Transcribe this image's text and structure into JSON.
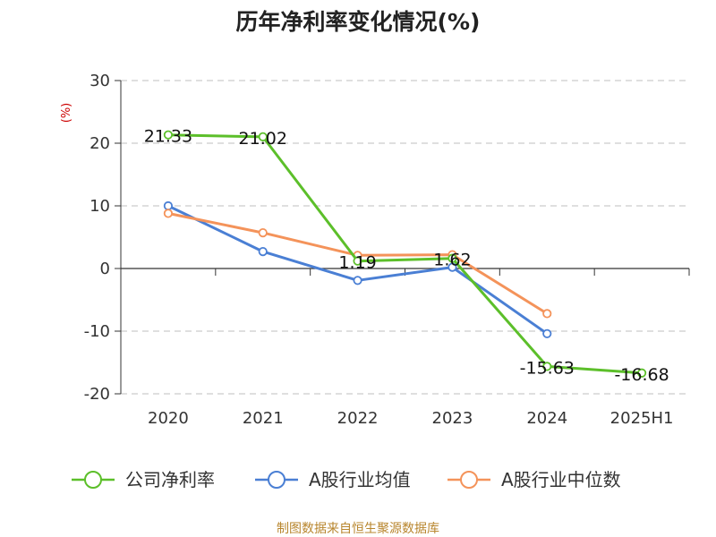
{
  "title": "历年净利率变化情况(%)",
  "source": "制图数据来自恒生聚源数据库",
  "chart_data": {
    "type": "line",
    "title": "历年净利率变化情况(%)",
    "ylabel": "(%)",
    "xlabel": "",
    "categories": [
      "2020",
      "2021",
      "2022",
      "2023",
      "2024",
      "2025H1"
    ],
    "ylim": [
      -20,
      30
    ],
    "yticks": [
      30,
      20,
      10,
      0,
      -10,
      -20
    ],
    "ytick_labels": [
      "30",
      "20",
      "10",
      "0",
      "-10",
      "-20"
    ],
    "grid": true,
    "legend_position": "bottom",
    "series": [
      {
        "name": "公司净利率",
        "color": "#5cbf2a",
        "values": [
          21.33,
          21.02,
          1.19,
          1.62,
          -15.63,
          -16.68
        ],
        "labels": [
          "21.33",
          "21.02",
          "1.19",
          "1.62",
          "-15.63",
          "-16.68"
        ]
      },
      {
        "name": "A股行业均值",
        "color": "#4a7fd4",
        "values": [
          10.0,
          2.7,
          -1.9,
          0.2,
          -10.4,
          null
        ]
      },
      {
        "name": "A股行业中位数",
        "color": "#f4935a",
        "values": [
          8.8,
          5.7,
          2.1,
          2.2,
          -7.2,
          null
        ]
      }
    ]
  }
}
